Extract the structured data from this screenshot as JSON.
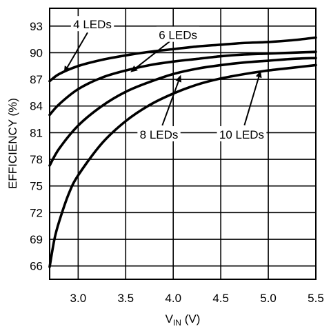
{
  "chart_data": {
    "type": "line",
    "xlabel_main": "V",
    "xlabel_sub": "IN",
    "xlabel_unit": " (V)",
    "ylabel": "EFFICIENCY (%)",
    "xlim": [
      2.7,
      5.5
    ],
    "ylim": [
      64.5,
      95
    ],
    "grid": true,
    "xticks": [
      3.0,
      3.5,
      4.0,
      4.5,
      5.0,
      5.5
    ],
    "xtick_labels": [
      "3.0",
      "3.5",
      "4.0",
      "4.5",
      "5.0",
      "5.5"
    ],
    "yticks": [
      66,
      69,
      72,
      75,
      78,
      81,
      84,
      87,
      90,
      93
    ],
    "ytick_labels": [
      "66",
      "69",
      "72",
      "75",
      "78",
      "81",
      "84",
      "87",
      "90",
      "93"
    ],
    "series": [
      {
        "name": "4 LEDs",
        "x": [
          2.7,
          2.8,
          3.0,
          3.25,
          3.5,
          3.75,
          4.0,
          4.25,
          4.5,
          4.75,
          5.0,
          5.25,
          5.5
        ],
        "y": [
          86.8,
          87.6,
          88.5,
          89.2,
          89.7,
          90.1,
          90.4,
          90.7,
          90.9,
          91.1,
          91.2,
          91.4,
          91.7
        ]
      },
      {
        "name": "6 LEDs",
        "x": [
          2.7,
          2.8,
          3.0,
          3.25,
          3.5,
          3.75,
          4.0,
          4.25,
          4.5,
          4.75,
          5.0,
          5.25,
          5.5
        ],
        "y": [
          83.0,
          84.2,
          85.9,
          87.2,
          88.0,
          88.6,
          89.0,
          89.3,
          89.6,
          89.8,
          89.9,
          90.0,
          90.1
        ]
      },
      {
        "name": "8 LEDs",
        "x": [
          2.7,
          2.8,
          3.0,
          3.25,
          3.5,
          3.75,
          4.0,
          4.25,
          4.5,
          4.75,
          5.0,
          5.25,
          5.5
        ],
        "y": [
          77.3,
          79.2,
          81.8,
          84.0,
          85.6,
          86.7,
          87.6,
          88.2,
          88.6,
          88.9,
          89.1,
          89.3,
          89.4
        ]
      },
      {
        "name": "10 LEDs",
        "x": [
          2.7,
          2.75,
          2.8,
          2.9,
          3.0,
          3.25,
          3.5,
          3.75,
          4.0,
          4.25,
          4.5,
          4.75,
          5.0,
          5.25,
          5.5
        ],
        "y": [
          65.9,
          69.0,
          71.0,
          74.1,
          76.2,
          79.8,
          82.3,
          84.1,
          85.4,
          86.4,
          87.1,
          87.6,
          88.0,
          88.3,
          88.6
        ]
      }
    ],
    "annotations": [
      {
        "text": "4 LEDs",
        "series": "4 LEDs",
        "label_x": 3.15,
        "label_y": 93.2,
        "point_x": 2.85,
        "point_y": 87.7
      },
      {
        "text": "6 LEDs",
        "series": "6 LEDs",
        "label_x": 4.05,
        "label_y": 92.0,
        "point_x": 3.55,
        "point_y": 87.8
      },
      {
        "text": "8 LEDs",
        "series": "8 LEDs",
        "label_x": 3.85,
        "label_y": 80.8,
        "point_x": 4.08,
        "point_y": 87.5
      },
      {
        "text": "10 LEDs",
        "series": "10 LEDs",
        "label_x": 4.72,
        "label_y": 80.8,
        "point_x": 4.92,
        "point_y": 88.0
      }
    ]
  }
}
